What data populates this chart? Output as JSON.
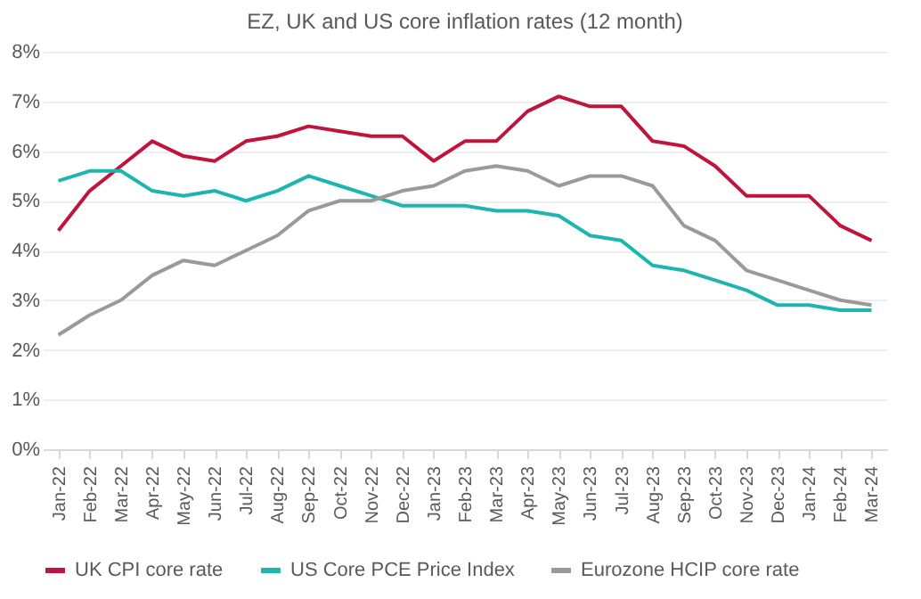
{
  "chart_data": {
    "type": "line",
    "title": "EZ, UK and US core inflation rates (12 month)",
    "categories": [
      "Jan-22",
      "Feb-22",
      "Mar-22",
      "Apr-22",
      "May-22",
      "Jun-22",
      "Jul-22",
      "Aug-22",
      "Sep-22",
      "Oct-22",
      "Nov-22",
      "Dec-22",
      "Jan-23",
      "Feb-23",
      "Mar-23",
      "Apr-23",
      "May-23",
      "Jun-23",
      "Jul-23",
      "Aug-23",
      "Sep-23",
      "Oct-23",
      "Nov-23",
      "Dec-23",
      "Jan-24",
      "Feb-24",
      "Mar-24"
    ],
    "series": [
      {
        "name": "UK CPI core rate",
        "color": "#c0143c",
        "values": [
          4.4,
          5.2,
          5.7,
          6.2,
          5.9,
          5.8,
          6.2,
          6.3,
          6.5,
          6.4,
          6.3,
          6.3,
          5.8,
          6.2,
          6.2,
          6.8,
          7.1,
          6.9,
          6.9,
          6.2,
          6.1,
          5.7,
          5.1,
          5.1,
          5.1,
          4.5,
          4.2
        ]
      },
      {
        "name": "US Core PCE Price Index",
        "color": "#1cb5b2",
        "values": [
          5.4,
          5.6,
          5.6,
          5.2,
          5.1,
          5.2,
          5.0,
          5.2,
          5.5,
          5.3,
          5.1,
          4.9,
          4.9,
          4.9,
          4.8,
          4.8,
          4.7,
          4.3,
          4.2,
          3.7,
          3.6,
          3.4,
          3.2,
          2.9,
          2.9,
          2.8,
          2.8
        ]
      },
      {
        "name": "Eurozone HCIP core rate",
        "color": "#9a9a9a",
        "values": [
          2.3,
          2.7,
          3.0,
          3.5,
          3.8,
          3.7,
          4.0,
          4.3,
          4.8,
          5.0,
          5.0,
          5.2,
          5.3,
          5.6,
          5.7,
          5.6,
          5.3,
          5.5,
          5.5,
          5.3,
          4.5,
          4.2,
          3.6,
          3.4,
          3.2,
          3.0,
          2.9
        ]
      }
    ],
    "ylim": [
      0,
      8
    ],
    "yticks": [
      {
        "value": 0,
        "label": "0%"
      },
      {
        "value": 1,
        "label": "1%"
      },
      {
        "value": 2,
        "label": "2%"
      },
      {
        "value": 3,
        "label": "3%"
      },
      {
        "value": 4,
        "label": "4%"
      },
      {
        "value": 5,
        "label": "5%"
      },
      {
        "value": 6,
        "label": "6%"
      },
      {
        "value": 7,
        "label": "7%"
      },
      {
        "value": 8,
        "label": "8%"
      }
    ],
    "grid": "y",
    "legend": "bottom",
    "marker": "none",
    "line_style": "solid"
  }
}
